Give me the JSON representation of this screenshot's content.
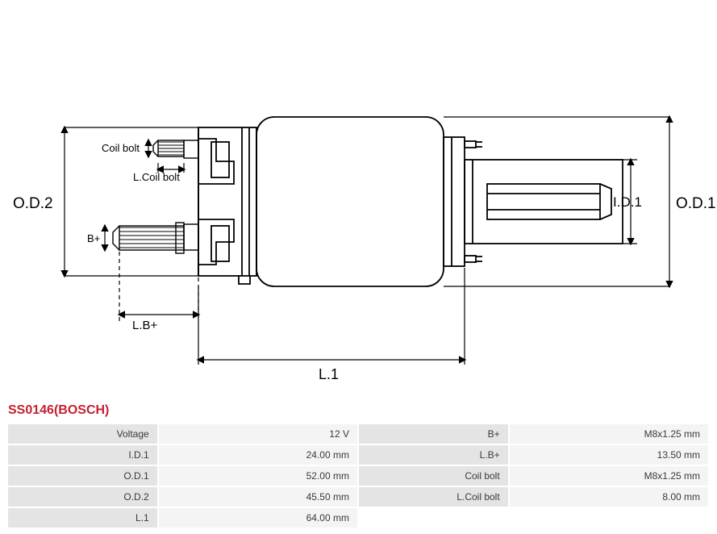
{
  "part_title": "SS0146(BOSCH)",
  "diagram_labels": {
    "od2": "O.D.2",
    "od1": "O.D.1",
    "id1": "I.D.1",
    "coil_bolt": "Coil bolt",
    "l_coil_bolt": "L.Coil bolt",
    "bplus": "B+",
    "l_bplus": "L.B+",
    "l1": "L.1"
  },
  "diagram_style": {
    "stroke": "#000000",
    "stroke_thin": 1.2,
    "stroke_thick": 1.8,
    "arrow_size": 7,
    "label_fontsize_large": 19,
    "label_fontsize_small": 13,
    "background": "#ffffff"
  },
  "specs": {
    "rows": [
      {
        "k1": "Voltage",
        "v1": "12 V",
        "k2": "B+",
        "v2": "M8x1.25 mm"
      },
      {
        "k1": "I.D.1",
        "v1": "24.00 mm",
        "k2": "L.B+",
        "v2": "13.50 mm"
      },
      {
        "k1": "O.D.1",
        "v1": "52.00 mm",
        "k2": "Coil bolt",
        "v2": "M8x1.25 mm"
      },
      {
        "k1": "O.D.2",
        "v1": "45.50 mm",
        "k2": "L.Coil bolt",
        "v2": "8.00 mm"
      },
      {
        "k1": "L.1",
        "v1": "64.00 mm",
        "k2": "",
        "v2": ""
      }
    ]
  }
}
